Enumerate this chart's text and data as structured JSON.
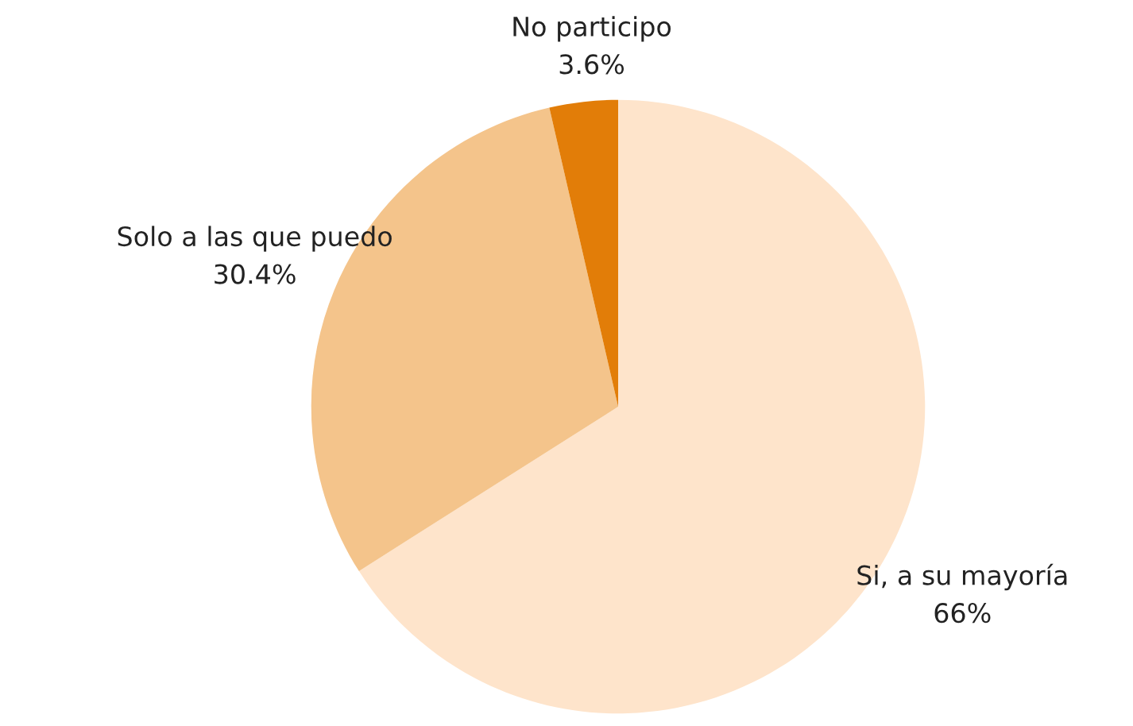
{
  "chart_data": {
    "type": "pie",
    "categories": [
      "Si, a su mayoría",
      "Solo a las que puedo",
      "No participo"
    ],
    "values": [
      66,
      30.4,
      3.6
    ],
    "colors": [
      "#fee4cb",
      "#f4c48b",
      "#e27d08"
    ],
    "value_labels": [
      "66%",
      "30.4%",
      "3.6%"
    ]
  }
}
